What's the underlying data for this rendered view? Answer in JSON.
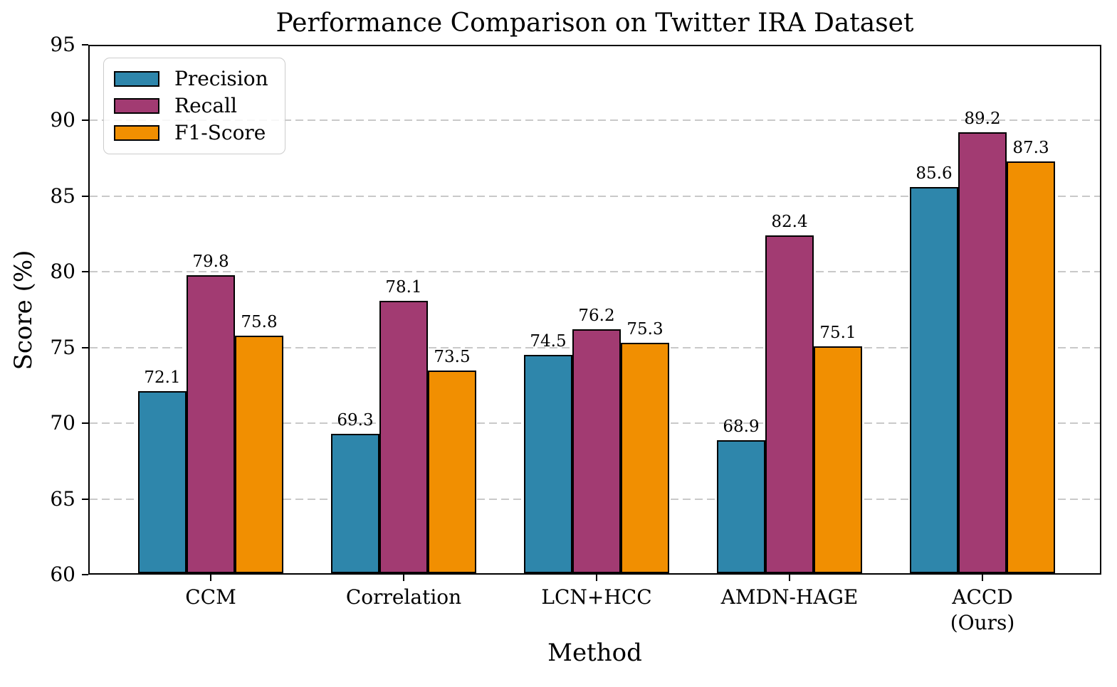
{
  "chart_data": {
    "type": "bar",
    "title": "Performance Comparison on Twitter IRA Dataset",
    "xlabel": "Method",
    "ylabel": "Score (%)",
    "categories": [
      "CCM",
      "Correlation",
      "LCN+HCC",
      "AMDN-HAGE",
      "ACCD\n(Ours)"
    ],
    "series": [
      {
        "name": "Precision",
        "color": "#2E86AB",
        "values": [
          72.1,
          69.3,
          74.5,
          68.9,
          85.6
        ]
      },
      {
        "name": "Recall",
        "color": "#A23B72",
        "values": [
          79.8,
          78.1,
          76.2,
          82.4,
          89.2
        ]
      },
      {
        "name": "F1-Score",
        "color": "#F18F01",
        "values": [
          75.8,
          73.5,
          75.3,
          75.1,
          87.3
        ]
      }
    ],
    "ylim": [
      60,
      95
    ],
    "yticks": [
      60,
      65,
      70,
      75,
      80,
      85,
      90,
      95
    ],
    "grid": "horizontal-dashed",
    "gridline_values": [
      65,
      70,
      75,
      80,
      85,
      90
    ],
    "legend_position": "upper-left",
    "bar_labels": true,
    "bar_edge_color": "#000000",
    "grid_color": "#c9c9c9"
  }
}
